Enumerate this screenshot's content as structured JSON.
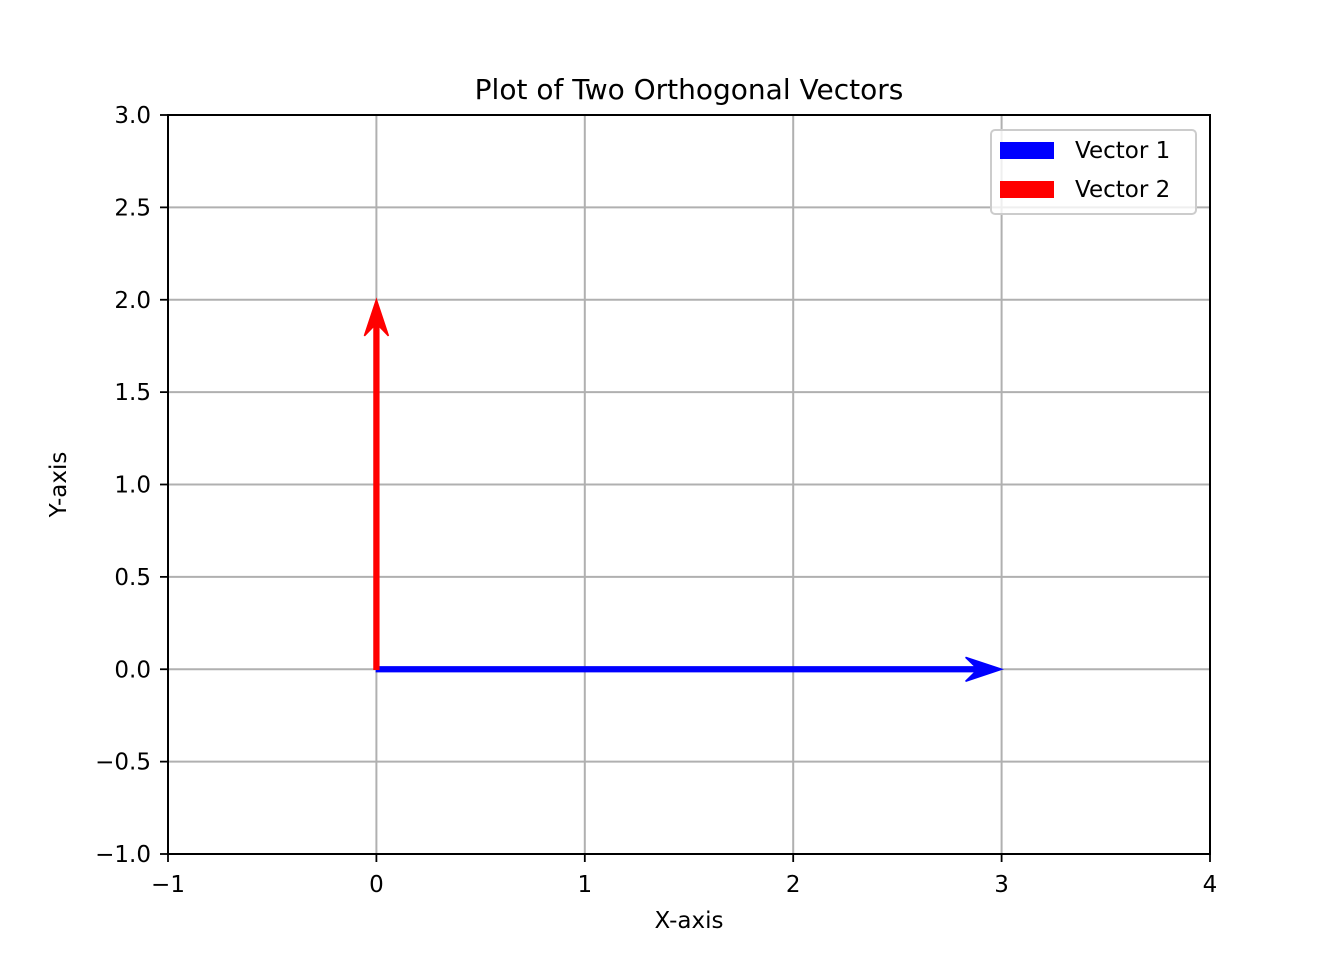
{
  "chart_data": {
    "type": "quiver",
    "title": "Plot of Two Orthogonal Vectors",
    "xlabel": "X-axis",
    "ylabel": "Y-axis",
    "xlim": [
      -1,
      4
    ],
    "ylim": [
      -1,
      3
    ],
    "xticks": [
      -1,
      0,
      1,
      2,
      3,
      4
    ],
    "xtick_labels": [
      "−1",
      "0",
      "1",
      "2",
      "3",
      "4"
    ],
    "yticks": [
      -1.0,
      -0.5,
      0.0,
      0.5,
      1.0,
      1.5,
      2.0,
      2.5,
      3.0
    ],
    "ytick_labels": [
      "−1.0",
      "−0.5",
      "0.0",
      "0.5",
      "1.0",
      "1.5",
      "2.0",
      "2.5",
      "3.0"
    ],
    "grid": true,
    "legend_position": "top-right",
    "series": [
      {
        "name": "Vector 1",
        "color": "#0000ff",
        "origin": [
          0,
          0
        ],
        "vector": [
          3,
          0
        ]
      },
      {
        "name": "Vector 2",
        "color": "#ff0000",
        "origin": [
          0,
          0
        ],
        "vector": [
          0,
          2
        ]
      }
    ]
  }
}
